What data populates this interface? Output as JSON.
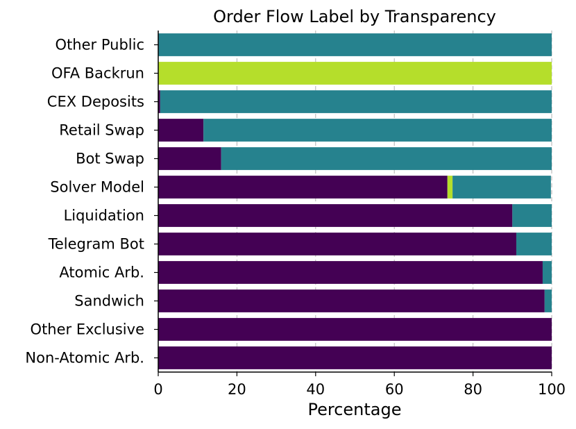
{
  "chart_data": {
    "type": "bar",
    "orientation": "horizontal",
    "stacked": true,
    "title": "Order Flow Label by Transparency",
    "xlabel": "Percentage",
    "ylabel": "",
    "xlim": [
      0,
      100
    ],
    "xticks": [
      "0",
      "20",
      "40",
      "60",
      "80",
      "100"
    ],
    "grid": "vertical dashed",
    "legend": "none",
    "categories": [
      "Other Public",
      "OFA Backrun",
      "CEX Deposits",
      "Retail Swap",
      "Bot Swap",
      "Solver Model",
      "Liquidation",
      "Telegram Bot",
      "Atomic Arb.",
      "Sandwich",
      "Other Exclusive",
      "Non-Atomic Arb."
    ],
    "series": [
      {
        "color": "#440154",
        "values": [
          0,
          0,
          0.5,
          11.5,
          16,
          73.5,
          90,
          91,
          97.7,
          98.2,
          100,
          100
        ]
      },
      {
        "color": "#b5de2b",
        "values": [
          0,
          100,
          0,
          0,
          0,
          1.3,
          0,
          0,
          0,
          0,
          0,
          0
        ]
      },
      {
        "color": "#26828e",
        "values": [
          100,
          0,
          99.5,
          88.5,
          84,
          25,
          10,
          9,
          2.3,
          1.8,
          0,
          0
        ]
      }
    ]
  }
}
